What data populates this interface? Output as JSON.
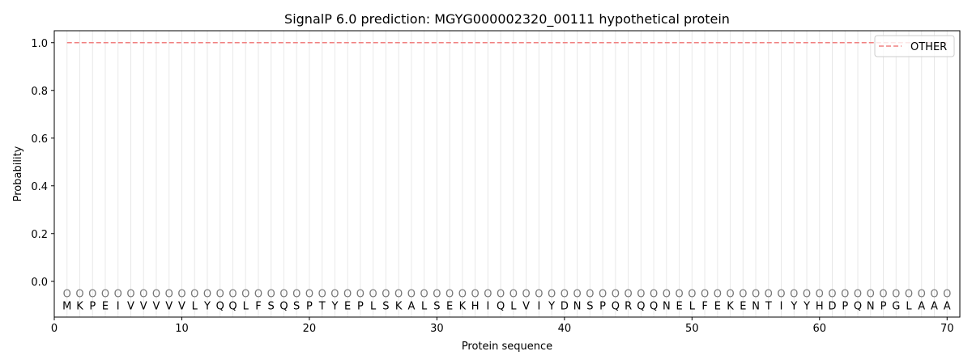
{
  "chart_data": {
    "type": "line",
    "title": "SignalP 6.0 prediction: MGYG000002320_00111 hypothetical protein",
    "xlabel": "Protein sequence",
    "ylabel": "Probability",
    "xlim": [
      0,
      71
    ],
    "ylim": [
      -0.15,
      1.05
    ],
    "xticks": [
      0,
      10,
      20,
      30,
      40,
      50,
      60,
      70
    ],
    "yticks": [
      0.0,
      0.2,
      0.4,
      0.6,
      0.8,
      1.0
    ],
    "ytick_labels": [
      "0.0",
      "0.2",
      "0.4",
      "0.6",
      "0.8",
      "1.0"
    ],
    "grid": "vertical lines at each residue",
    "legend_position": "top-right",
    "sequence": "MKPEIVVVVVLYQQLFSQSPTYEPLSKALSEKHIQLVIYDNSPQRQQNELFEKENTIYYHDPQNPGLAAA",
    "predicted_labels": "OOOOOOOOOOOOOOOOOOOOOOOOOOOOOOOOOOOOOOOOOOOOOOOOOOOOOOOOOOOOOOOOOOOOOO",
    "series": [
      {
        "name": "OTHER",
        "color": "#f08080",
        "style": "dashed",
        "x_range": [
          1,
          70
        ],
        "value": 1.0
      }
    ]
  }
}
